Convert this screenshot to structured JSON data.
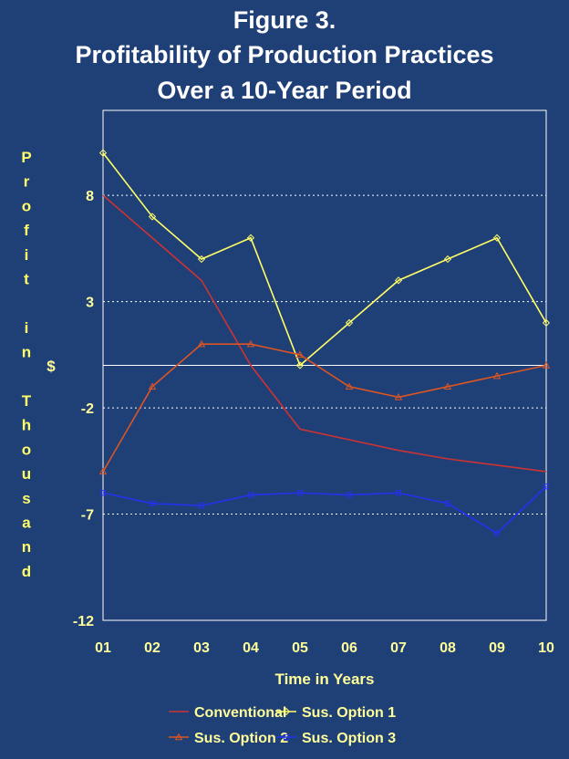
{
  "chart_data": {
    "type": "line",
    "title_lines": [
      "Figure 3.",
      "Profitability of Production Practices",
      "Over a 10-Year Period"
    ],
    "ylabel_top": "Profit in Thousand",
    "ylabel_unit": "$",
    "xlabel": "Time in Years",
    "categories": [
      "01",
      "02",
      "03",
      "04",
      "05",
      "06",
      "07",
      "08",
      "09",
      "10"
    ],
    "y_ticks": [
      8,
      3,
      -2,
      -7,
      -12
    ],
    "ylim": [
      -12,
      12
    ],
    "grid": "horizontal dotted",
    "legend_position": "bottom",
    "series": [
      {
        "name": "Conventional",
        "color": "#cc3333",
        "marker": "none",
        "values": [
          8,
          6,
          4,
          0,
          -3,
          -3.5,
          -4,
          -4.4,
          -4.7,
          -5
        ]
      },
      {
        "name": "Sus. Option 1",
        "color": "#ffff66",
        "marker": "diamond",
        "values": [
          10,
          7,
          5,
          6,
          0,
          2,
          4,
          5,
          6,
          2
        ]
      },
      {
        "name": "Sus. Option 2",
        "color": "#dd5522",
        "marker": "triangle",
        "values": [
          -5,
          -1,
          1,
          1,
          0.5,
          -1,
          -1.5,
          -1,
          -0.5,
          0
        ]
      },
      {
        "name": "Sus. Option 3",
        "color": "#2233ee",
        "marker": "square",
        "values": [
          -6,
          -6.5,
          -6.6,
          -6.1,
          -6,
          -6.1,
          -6,
          -6.5,
          -7.9,
          -5.7
        ]
      }
    ]
  }
}
